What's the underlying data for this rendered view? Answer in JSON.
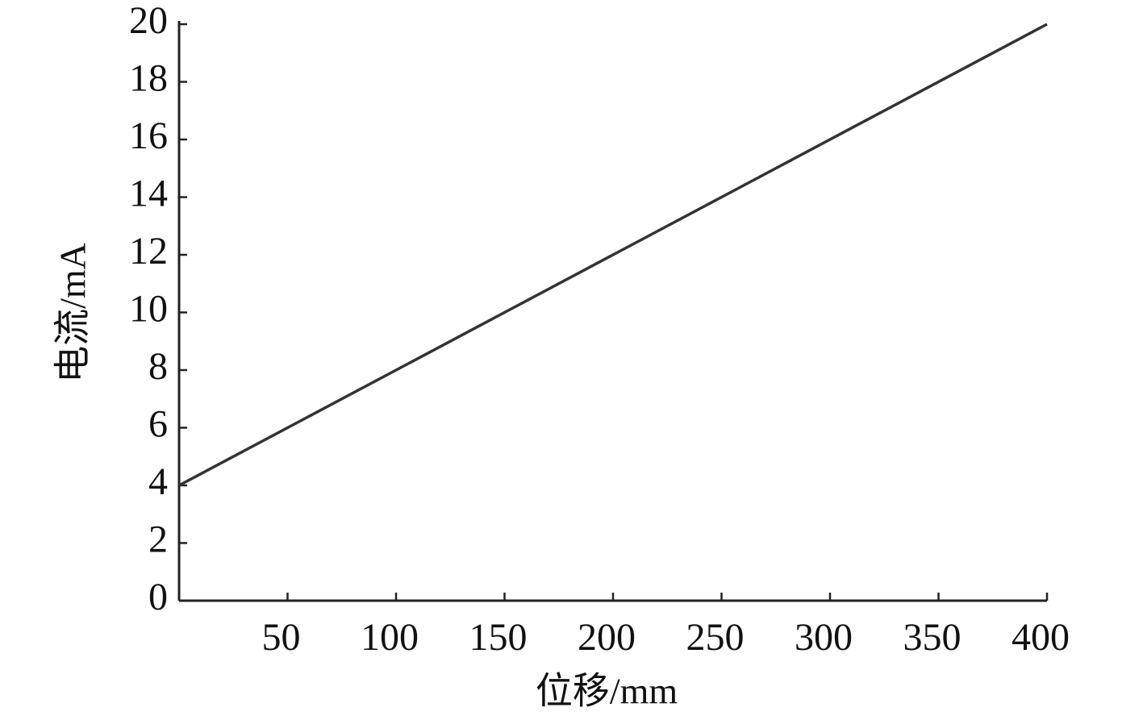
{
  "chart_data": {
    "type": "line",
    "x_label": "位移/mm",
    "y_label": "电流/mA",
    "x": [
      0,
      400
    ],
    "series": [
      {
        "color": "#333333",
        "values": [
          4,
          20
        ]
      }
    ],
    "xlim": [
      0,
      400
    ],
    "xticks": [
      50,
      100,
      150,
      200,
      250,
      300,
      350,
      400
    ],
    "ylim": [
      0,
      20
    ],
    "yticks": [
      0,
      2,
      4,
      6,
      8,
      10,
      12,
      14,
      16,
      18,
      20
    ]
  }
}
